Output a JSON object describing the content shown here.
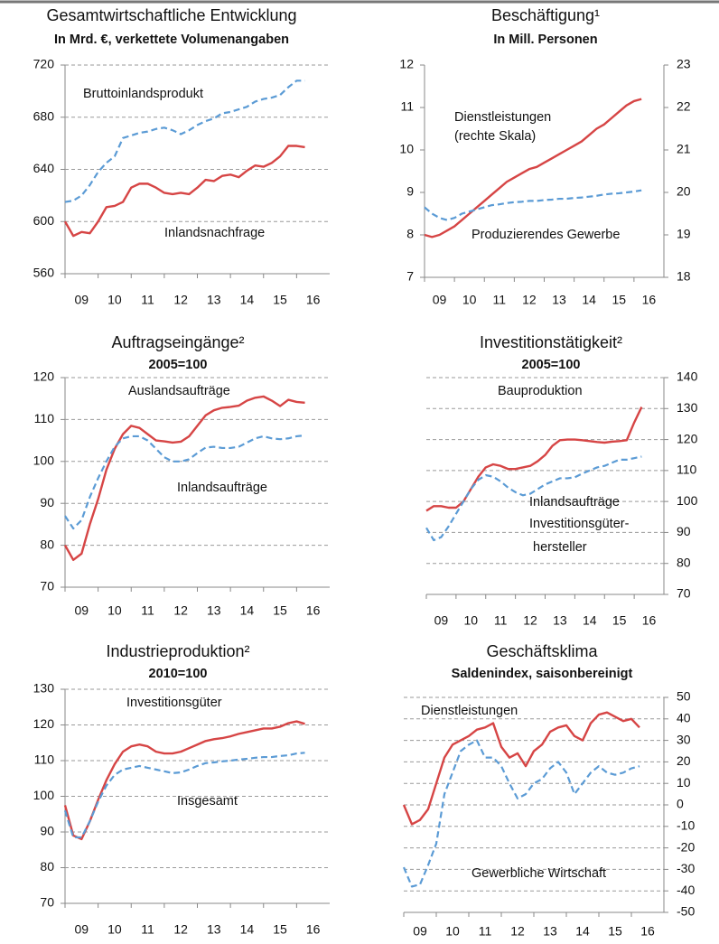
{
  "chart_data": [
    {
      "type": "line",
      "title": "Gesamtwirtschaftliche Entwicklung",
      "subtitle": "In Mrd. €, verkettete Volumenangaben",
      "x": [
        9,
        9.25,
        9.5,
        9.75,
        10,
        10.25,
        10.5,
        10.75,
        11,
        11.25,
        11.5,
        11.75,
        12,
        12.25,
        12.5,
        12.75,
        13,
        13.25,
        13.5,
        13.75,
        14,
        14.25,
        14.5,
        14.75,
        15,
        15.25,
        15.5,
        15.75,
        16,
        16.25
      ],
      "xlim": [
        9,
        17
      ],
      "xticks": [
        {
          "value": 9,
          "label": "09"
        },
        10,
        11,
        12,
        13,
        14,
        15,
        16
      ],
      "ylim": [
        560,
        720
      ],
      "yticks": [
        560,
        600,
        640,
        680,
        720
      ],
      "grid": true,
      "series": [
        {
          "color": "#5b9bd5",
          "style": "dashed",
          "values": [
            615,
            616,
            620,
            628,
            638,
            645,
            650,
            664,
            666,
            668,
            669,
            671,
            672,
            670,
            667,
            670,
            674,
            677,
            679,
            683,
            684,
            686,
            688,
            692,
            694,
            695,
            697,
            703,
            708,
            708
          ]
        },
        {
          "color": "#d64545",
          "style": "solid",
          "values": [
            600,
            589,
            592,
            591,
            600,
            611,
            612,
            615,
            626,
            629,
            629,
            626,
            622,
            621,
            622,
            621,
            626,
            632,
            631,
            635,
            636,
            634,
            639,
            643,
            642,
            645,
            650,
            658,
            658,
            657
          ]
        }
      ],
      "annotations": [
        "Bruttoinlandsprodukt",
        "Inlandsnachfrage"
      ]
    },
    {
      "type": "line",
      "title": "Beschäftigung¹",
      "subtitle": "In Mill. Personen",
      "x": [
        9,
        9.25,
        9.5,
        9.75,
        10,
        10.25,
        10.5,
        10.75,
        11,
        11.25,
        11.5,
        11.75,
        12,
        12.25,
        12.5,
        12.75,
        13,
        13.25,
        13.5,
        13.75,
        14,
        14.25,
        14.5,
        14.75,
        15,
        15.25,
        15.5,
        15.75,
        16,
        16.25
      ],
      "xlim": [
        9,
        17
      ],
      "xticks": [
        {
          "value": 9,
          "label": "09"
        },
        10,
        11,
        12,
        13,
        14,
        15,
        16
      ],
      "ylim": [
        7,
        12
      ],
      "yticks": [
        7,
        8,
        9,
        10,
        11,
        12
      ],
      "y2lim": [
        18,
        23
      ],
      "y2ticks": [
        18,
        19,
        20,
        21,
        22,
        23
      ],
      "grid": false,
      "series": [
        {
          "color": "#d64545",
          "style": "solid",
          "axis": "y2",
          "values": [
            19.0,
            18.95,
            19.0,
            19.1,
            19.2,
            19.35,
            19.5,
            19.65,
            19.8,
            19.95,
            20.1,
            20.25,
            20.35,
            20.45,
            20.55,
            20.6,
            20.7,
            20.8,
            20.9,
            21.0,
            21.1,
            21.2,
            21.35,
            21.5,
            21.6,
            21.75,
            21.9,
            22.05,
            22.15,
            22.2
          ]
        },
        {
          "color": "#5b9bd5",
          "style": "dashed",
          "values": [
            8.65,
            8.5,
            8.4,
            8.35,
            8.4,
            8.5,
            8.55,
            8.6,
            8.65,
            8.7,
            8.72,
            8.75,
            8.77,
            8.78,
            8.8,
            8.8,
            8.82,
            8.83,
            8.85,
            8.85,
            8.87,
            8.88,
            8.9,
            8.92,
            8.95,
            8.97,
            8.98,
            9.0,
            9.02,
            9.05
          ]
        }
      ],
      "annotations": [
        "Dienstleistungen",
        "(rechte Skala)",
        "Produzierendes Gewerbe"
      ]
    },
    {
      "type": "line",
      "title": "Auftragseingänge²",
      "subtitle": "2005=100",
      "x": [
        9,
        9.25,
        9.5,
        9.75,
        10,
        10.25,
        10.5,
        10.75,
        11,
        11.25,
        11.5,
        11.75,
        12,
        12.25,
        12.5,
        12.75,
        13,
        13.25,
        13.5,
        13.75,
        14,
        14.25,
        14.5,
        14.75,
        15,
        15.25,
        15.5,
        15.75,
        16,
        16.25
      ],
      "xlim": [
        9,
        17
      ],
      "xticks": [
        {
          "value": 9,
          "label": "09"
        },
        10,
        11,
        12,
        13,
        14,
        15,
        16
      ],
      "ylim": [
        70,
        120
      ],
      "yticks": [
        70,
        80,
        90,
        100,
        110,
        120
      ],
      "grid": true,
      "series": [
        {
          "color": "#d64545",
          "style": "solid",
          "values": [
            80,
            76.5,
            78,
            85,
            91,
            98,
            103,
            106.5,
            108.5,
            108,
            106.5,
            105,
            104.8,
            104.5,
            104.7,
            106,
            108.5,
            111,
            112.2,
            112.8,
            113,
            113.3,
            114.5,
            115.2,
            115.5,
            114.5,
            113.2,
            114.7,
            114.2,
            114
          ]
        },
        {
          "color": "#5b9bd5",
          "style": "dashed",
          "values": [
            87,
            84,
            86,
            91.5,
            96,
            100,
            103.5,
            105.5,
            106,
            106,
            105,
            103,
            101,
            100,
            100,
            100.5,
            102,
            103.3,
            103.5,
            103.2,
            103.2,
            103.5,
            104.5,
            105.5,
            106,
            105.5,
            105.3,
            105.5,
            106,
            106.2
          ]
        }
      ],
      "annotations": [
        "Auslandsaufträge",
        "Inlandsaufträge"
      ]
    },
    {
      "type": "line",
      "title": "Investitionstätigkeit²",
      "subtitle": "2005=100",
      "x": [
        9,
        9.25,
        9.5,
        9.75,
        10,
        10.25,
        10.5,
        10.75,
        11,
        11.25,
        11.5,
        11.75,
        12,
        12.25,
        12.5,
        12.75,
        13,
        13.25,
        13.5,
        13.75,
        14,
        14.25,
        14.5,
        14.75,
        15,
        15.25,
        15.5,
        15.75,
        16,
        16.25
      ],
      "xlim": [
        9,
        17
      ],
      "xticks": [
        {
          "value": 9,
          "label": "09"
        },
        10,
        11,
        12,
        13,
        14,
        15,
        16
      ],
      "y2lim": [
        70,
        140
      ],
      "y2ticks": [
        70,
        80,
        90,
        100,
        110,
        120,
        130,
        140
      ],
      "grid": true,
      "series": [
        {
          "color": "#d64545",
          "style": "solid",
          "axis": "y2",
          "values": [
            97,
            98.5,
            98.5,
            98,
            98,
            100,
            104,
            108,
            111,
            112,
            111.5,
            110.5,
            110.5,
            111,
            111.5,
            113,
            115,
            118,
            119.8,
            120,
            120,
            119.8,
            119.5,
            119.2,
            119,
            119.3,
            119.5,
            119.8,
            125.5,
            130.5
          ]
        },
        {
          "color": "#5b9bd5",
          "style": "dashed",
          "axis": "y2",
          "values": [
            91.5,
            87.5,
            88.5,
            92,
            96,
            100,
            104,
            107,
            108.5,
            108,
            106.5,
            104.5,
            103,
            102,
            102.5,
            104,
            105.5,
            106.5,
            107.5,
            107.5,
            107.8,
            109,
            110,
            111,
            111.5,
            112.5,
            113.5,
            113.5,
            114,
            114.5
          ]
        }
      ],
      "annotations": [
        "Bauproduktion",
        "Inlandsaufträge",
        "Investitionsgüter-",
        "hersteller"
      ]
    },
    {
      "type": "line",
      "title": "Industrieproduktion²",
      "subtitle": "2010=100",
      "x": [
        9,
        9.25,
        9.5,
        9.75,
        10,
        10.25,
        10.5,
        10.75,
        11,
        11.25,
        11.5,
        11.75,
        12,
        12.25,
        12.5,
        12.75,
        13,
        13.25,
        13.5,
        13.75,
        14,
        14.25,
        14.5,
        14.75,
        15,
        15.25,
        15.5,
        15.75,
        16,
        16.25
      ],
      "xlim": [
        9,
        17
      ],
      "xticks": [
        {
          "value": 9,
          "label": "09"
        },
        10,
        11,
        12,
        13,
        14,
        15,
        16
      ],
      "ylim": [
        70,
        130
      ],
      "yticks": [
        70,
        80,
        90,
        100,
        110,
        120,
        130
      ],
      "grid": true,
      "series": [
        {
          "color": "#d64545",
          "style": "solid",
          "values": [
            97.5,
            89,
            88,
            93,
            99,
            104.5,
            109,
            112.5,
            114,
            114.5,
            114,
            112.5,
            112,
            112,
            112.5,
            113.5,
            114.5,
            115.5,
            116,
            116.3,
            116.8,
            117.5,
            118,
            118.5,
            119,
            119,
            119.5,
            120.5,
            121,
            120.3
          ]
        },
        {
          "color": "#5b9bd5",
          "style": "dashed",
          "values": [
            96,
            88.5,
            88.5,
            93,
            98.5,
            103,
            106,
            107.5,
            108,
            108.5,
            108,
            107.5,
            107,
            106.5,
            106.7,
            107.5,
            108.5,
            109.3,
            109.5,
            109.8,
            110,
            110.3,
            110.5,
            110.8,
            111,
            111,
            111.3,
            111.5,
            112,
            112.2
          ]
        }
      ],
      "annotations": [
        "Investitionsgüter",
        "Insgesamt"
      ]
    },
    {
      "type": "line",
      "title": "Geschäftsklima",
      "subtitle": "Saldenindex, saisonbereinigt",
      "x": [
        9,
        9.25,
        9.5,
        9.75,
        10,
        10.25,
        10.5,
        10.75,
        11,
        11.25,
        11.5,
        11.75,
        12,
        12.25,
        12.5,
        12.75,
        13,
        13.25,
        13.5,
        13.75,
        14,
        14.25,
        14.5,
        14.75,
        15,
        15.25,
        15.5,
        15.75,
        16,
        16.25
      ],
      "xlim": [
        9,
        17
      ],
      "xticks": [
        {
          "value": 9,
          "label": "09"
        },
        10,
        11,
        12,
        13,
        14,
        15,
        16
      ],
      "y2lim": [
        -50,
        50
      ],
      "y2ticks": [
        -50,
        -40,
        -30,
        -20,
        -10,
        0,
        10,
        20,
        30,
        40,
        50
      ],
      "grid": true,
      "series": [
        {
          "color": "#d64545",
          "style": "solid",
          "axis": "y2",
          "values": [
            0,
            -9,
            -7,
            -2,
            10,
            22,
            28,
            30,
            32,
            35,
            36,
            38,
            27,
            22,
            24,
            18,
            25,
            28,
            34,
            36,
            37,
            32,
            30,
            38,
            42,
            43,
            41,
            39,
            40,
            36
          ]
        },
        {
          "color": "#5b9bd5",
          "style": "dashed",
          "axis": "y2",
          "values": [
            -29,
            -38,
            -37,
            -28,
            -18,
            5,
            15,
            25,
            28,
            30,
            22,
            22,
            18,
            10,
            3,
            5,
            10,
            12,
            17,
            20,
            15,
            5,
            10,
            15,
            18,
            15,
            14,
            15,
            17,
            18
          ]
        }
      ],
      "annotations": [
        "Dienstleistungen",
        "Gewerbliche Wirtschaft"
      ]
    }
  ]
}
